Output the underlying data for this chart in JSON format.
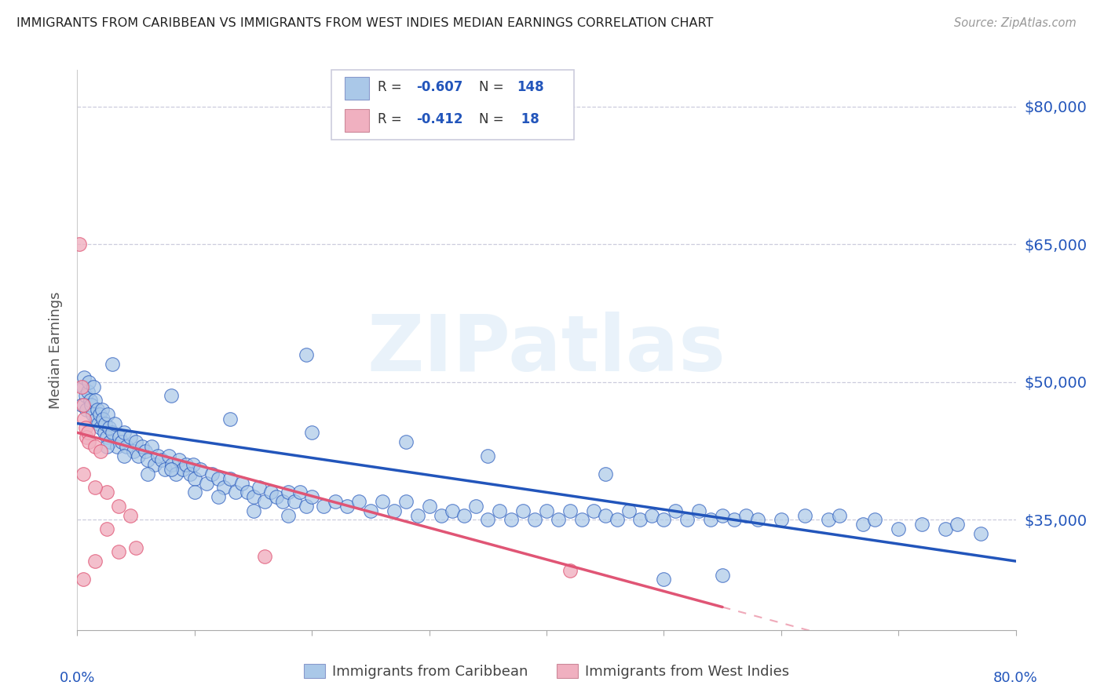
{
  "title": "IMMIGRANTS FROM CARIBBEAN VS IMMIGRANTS FROM WEST INDIES MEDIAN EARNINGS CORRELATION CHART",
  "source": "Source: ZipAtlas.com",
  "ylabel": "Median Earnings",
  "yticks": [
    35000,
    50000,
    65000,
    80000
  ],
  "ytick_labels": [
    "$35,000",
    "$50,000",
    "$65,000",
    "$80,000"
  ],
  "xmin": 0.0,
  "xmax": 80.0,
  "ymin": 23000,
  "ymax": 84000,
  "blue_color": "#aac8e8",
  "pink_color": "#f0b0c0",
  "blue_line_color": "#2255bb",
  "pink_line_color": "#e05575",
  "legend_label_blue": "Immigrants from Caribbean",
  "legend_label_pink": "Immigrants from West Indies",
  "watermark": "ZIPatlas",
  "blue_trend_x0": 0,
  "blue_trend_x1": 80,
  "blue_trend_y0": 45500,
  "blue_trend_y1": 30500,
  "pink_trend_x0": 0,
  "pink_trend_x1": 55,
  "pink_trend_y0": 44500,
  "pink_trend_y1": 25500,
  "blue_scatter": [
    [
      0.4,
      47500
    ],
    [
      0.5,
      49500
    ],
    [
      0.6,
      50500
    ],
    [
      0.7,
      48500
    ],
    [
      0.8,
      47000
    ],
    [
      0.9,
      49000
    ],
    [
      1.0,
      50000
    ],
    [
      1.1,
      48000
    ],
    [
      1.2,
      47500
    ],
    [
      1.3,
      46500
    ],
    [
      1.4,
      49500
    ],
    [
      1.5,
      48000
    ],
    [
      1.6,
      46000
    ],
    [
      1.7,
      47000
    ],
    [
      1.8,
      45500
    ],
    [
      1.9,
      46500
    ],
    [
      2.0,
      45000
    ],
    [
      2.1,
      47000
    ],
    [
      2.2,
      46000
    ],
    [
      2.3,
      44500
    ],
    [
      2.4,
      45500
    ],
    [
      2.5,
      44000
    ],
    [
      2.6,
      46500
    ],
    [
      2.7,
      45000
    ],
    [
      2.8,
      43500
    ],
    [
      3.0,
      44500
    ],
    [
      3.2,
      45500
    ],
    [
      3.4,
      43000
    ],
    [
      3.6,
      44000
    ],
    [
      3.8,
      43500
    ],
    [
      4.0,
      44500
    ],
    [
      4.2,
      43000
    ],
    [
      4.5,
      44000
    ],
    [
      4.8,
      42500
    ],
    [
      5.0,
      43500
    ],
    [
      5.2,
      42000
    ],
    [
      5.5,
      43000
    ],
    [
      5.8,
      42500
    ],
    [
      6.0,
      41500
    ],
    [
      6.3,
      43000
    ],
    [
      6.6,
      41000
    ],
    [
      6.9,
      42000
    ],
    [
      7.2,
      41500
    ],
    [
      7.5,
      40500
    ],
    [
      7.8,
      42000
    ],
    [
      8.1,
      41000
    ],
    [
      8.4,
      40000
    ],
    [
      8.7,
      41500
    ],
    [
      9.0,
      40500
    ],
    [
      9.3,
      41000
    ],
    [
      9.6,
      40000
    ],
    [
      9.9,
      41000
    ],
    [
      10.0,
      39500
    ],
    [
      10.5,
      40500
    ],
    [
      11.0,
      39000
    ],
    [
      11.5,
      40000
    ],
    [
      12.0,
      39500
    ],
    [
      12.5,
      38500
    ],
    [
      13.0,
      39500
    ],
    [
      13.5,
      38000
    ],
    [
      14.0,
      39000
    ],
    [
      14.5,
      38000
    ],
    [
      15.0,
      37500
    ],
    [
      15.5,
      38500
    ],
    [
      16.0,
      37000
    ],
    [
      16.5,
      38000
    ],
    [
      17.0,
      37500
    ],
    [
      17.5,
      37000
    ],
    [
      18.0,
      38000
    ],
    [
      18.5,
      37000
    ],
    [
      19.0,
      38000
    ],
    [
      19.5,
      36500
    ],
    [
      20.0,
      37500
    ],
    [
      21.0,
      36500
    ],
    [
      22.0,
      37000
    ],
    [
      23.0,
      36500
    ],
    [
      24.0,
      37000
    ],
    [
      25.0,
      36000
    ],
    [
      26.0,
      37000
    ],
    [
      27.0,
      36000
    ],
    [
      28.0,
      37000
    ],
    [
      29.0,
      35500
    ],
    [
      30.0,
      36500
    ],
    [
      31.0,
      35500
    ],
    [
      32.0,
      36000
    ],
    [
      33.0,
      35500
    ],
    [
      34.0,
      36500
    ],
    [
      35.0,
      35000
    ],
    [
      36.0,
      36000
    ],
    [
      37.0,
      35000
    ],
    [
      38.0,
      36000
    ],
    [
      39.0,
      35000
    ],
    [
      40.0,
      36000
    ],
    [
      41.0,
      35000
    ],
    [
      42.0,
      36000
    ],
    [
      43.0,
      35000
    ],
    [
      44.0,
      36000
    ],
    [
      45.0,
      35500
    ],
    [
      46.0,
      35000
    ],
    [
      47.0,
      36000
    ],
    [
      48.0,
      35000
    ],
    [
      49.0,
      35500
    ],
    [
      50.0,
      35000
    ],
    [
      51.0,
      36000
    ],
    [
      52.0,
      35000
    ],
    [
      53.0,
      36000
    ],
    [
      54.0,
      35000
    ],
    [
      55.0,
      35500
    ],
    [
      56.0,
      35000
    ],
    [
      57.0,
      35500
    ],
    [
      58.0,
      35000
    ],
    [
      60.0,
      35000
    ],
    [
      62.0,
      35500
    ],
    [
      64.0,
      35000
    ],
    [
      65.0,
      35500
    ],
    [
      67.0,
      34500
    ],
    [
      68.0,
      35000
    ],
    [
      70.0,
      34000
    ],
    [
      72.0,
      34500
    ],
    [
      74.0,
      34000
    ],
    [
      75.0,
      34500
    ],
    [
      77.0,
      33500
    ],
    [
      3.0,
      52000
    ],
    [
      19.5,
      53000
    ],
    [
      8.0,
      48500
    ],
    [
      13.0,
      46000
    ],
    [
      20.0,
      44500
    ],
    [
      28.0,
      43500
    ],
    [
      35.0,
      42000
    ],
    [
      45.0,
      40000
    ],
    [
      2.5,
      43000
    ],
    [
      4.0,
      42000
    ],
    [
      6.0,
      40000
    ],
    [
      8.0,
      40500
    ],
    [
      10.0,
      38000
    ],
    [
      12.0,
      37500
    ],
    [
      15.0,
      36000
    ],
    [
      18.0,
      35500
    ],
    [
      55.0,
      29000
    ],
    [
      50.0,
      28500
    ]
  ],
  "pink_scatter": [
    [
      0.2,
      65000
    ],
    [
      0.4,
      49500
    ],
    [
      0.5,
      47500
    ],
    [
      0.6,
      46000
    ],
    [
      0.7,
      45000
    ],
    [
      0.8,
      44000
    ],
    [
      0.9,
      44500
    ],
    [
      1.0,
      43500
    ],
    [
      1.5,
      43000
    ],
    [
      2.0,
      42500
    ],
    [
      2.5,
      38000
    ],
    [
      3.5,
      36500
    ],
    [
      4.5,
      35500
    ],
    [
      0.5,
      40000
    ],
    [
      1.5,
      38500
    ],
    [
      2.5,
      34000
    ],
    [
      5.0,
      32000
    ],
    [
      16.0,
      31000
    ],
    [
      42.0,
      29500
    ],
    [
      3.5,
      31500
    ],
    [
      1.5,
      30500
    ],
    [
      0.5,
      28500
    ]
  ]
}
